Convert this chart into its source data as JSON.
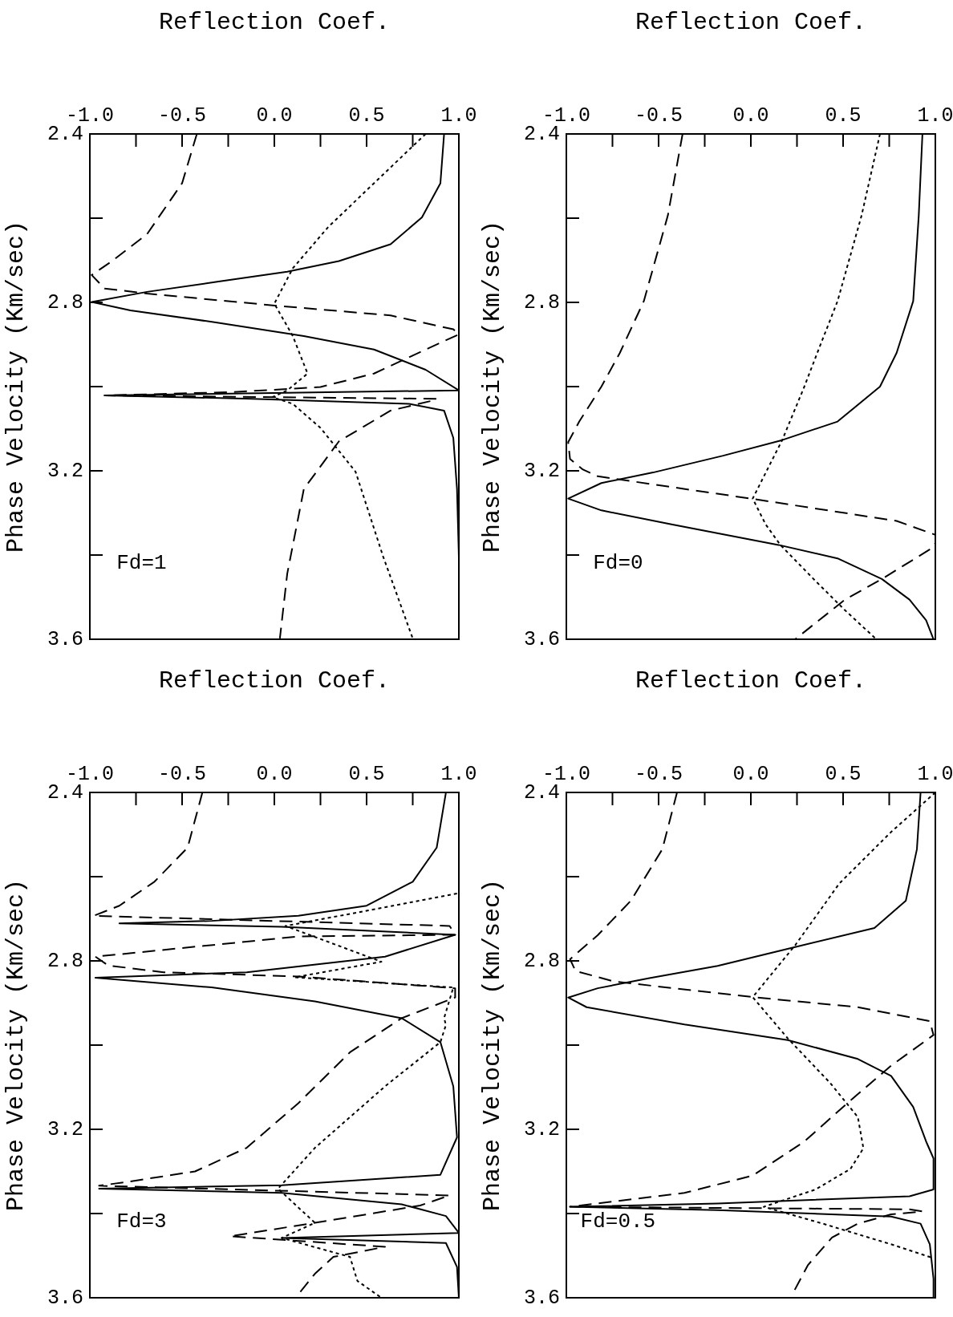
{
  "chart_data": [
    {
      "type": "line",
      "xlabel": "Reflection Coef.",
      "ylabel": "Phase Velocity (Km/sec)",
      "annotations": [
        "Fd=1"
      ],
      "xlim": [
        -1,
        1
      ],
      "ylim": [
        3.6,
        2.4
      ],
      "xticks": [
        {
          "value": -1,
          "label": "-1.0"
        },
        {
          "value": -0.75,
          "label": null
        },
        {
          "value": -0.5,
          "label": "-0.5"
        },
        {
          "value": -0.25,
          "label": null
        },
        {
          "value": 0,
          "label": "0.0"
        },
        {
          "value": 0.25,
          "label": null
        },
        {
          "value": 0.5,
          "label": "0.5"
        },
        {
          "value": 0.75,
          "label": null
        },
        {
          "value": 1,
          "label": "1.0"
        }
      ],
      "yticks": [
        {
          "value": 2.4,
          "label": "2.4"
        },
        {
          "value": 2.6,
          "label": null
        },
        {
          "value": 2.8,
          "label": "2.8"
        },
        {
          "value": 3.0,
          "label": null
        },
        {
          "value": 3.2,
          "label": "3.2"
        },
        {
          "value": 3.4,
          "label": null
        },
        {
          "value": 3.6,
          "label": "3.6"
        }
      ],
      "series": [
        {
          "color": "#000000",
          "line_style": "solid",
          "values": [
            2.4,
            2.517,
            2.598,
            2.662,
            2.702,
            2.727,
            2.751,
            2.775,
            2.799,
            2.819,
            2.848,
            2.88,
            2.912,
            2.96,
            3.009,
            3.021,
            3.029,
            3.041,
            3.057,
            3.122,
            3.243,
            3.404,
            3.598
          ],
          "x": [
            0.92,
            0.9,
            0.8,
            0.63,
            0.35,
            0.07,
            -0.31,
            -0.69,
            -0.99,
            -0.78,
            -0.31,
            0.16,
            0.54,
            0.82,
            1.0,
            -0.92,
            -0.12,
            0.73,
            0.92,
            0.97,
            0.99,
            1.0,
            1.0
          ]
        },
        {
          "color": "#000000",
          "line_style": "dashed",
          "values": [
            2.4,
            2.517,
            2.638,
            2.702,
            2.735,
            2.767,
            2.779,
            2.807,
            2.831,
            2.864,
            2.876,
            2.912,
            2.969,
            3.001,
            3.013,
            3.021,
            3.029,
            3.033,
            3.057,
            3.13,
            3.243,
            3.444,
            3.598
          ],
          "x": [
            -0.42,
            -0.5,
            -0.69,
            -0.88,
            -0.99,
            -0.92,
            -0.69,
            -0.01,
            0.63,
            0.97,
            1.0,
            0.82,
            0.54,
            0.25,
            -0.22,
            -0.92,
            0.88,
            0.86,
            0.63,
            0.35,
            0.16,
            0.07,
            0.03
          ]
        },
        {
          "color": "#000000",
          "line_style": "dotted",
          "values": [
            2.4,
            2.517,
            2.622,
            2.719,
            2.803,
            2.88,
            2.969,
            3.009,
            3.025,
            3.041,
            3.098,
            3.202,
            3.404,
            3.598
          ],
          "x": [
            0.82,
            0.54,
            0.29,
            0.1,
            0.0,
            0.1,
            0.18,
            0.07,
            -0.01,
            0.1,
            0.25,
            0.44,
            0.59,
            0.75
          ]
        }
      ]
    },
    {
      "type": "line",
      "xlabel": "Reflection Coef.",
      "ylabel": "Phase Velocity (Km/sec)",
      "annotations": [
        "Fd=0"
      ],
      "xlim": [
        -1,
        1
      ],
      "ylim": [
        3.6,
        2.4
      ],
      "xticks": [
        {
          "value": -1,
          "label": "-1.0"
        },
        {
          "value": -0.75,
          "label": null
        },
        {
          "value": -0.5,
          "label": "-0.5"
        },
        {
          "value": -0.25,
          "label": null
        },
        {
          "value": 0,
          "label": "0.0"
        },
        {
          "value": 0.25,
          "label": null
        },
        {
          "value": 0.5,
          "label": "0.5"
        },
        {
          "value": 0.75,
          "label": null
        },
        {
          "value": 1,
          "label": "1.0"
        }
      ],
      "yticks": [
        {
          "value": 2.4,
          "label": "2.4"
        },
        {
          "value": 2.6,
          "label": null
        },
        {
          "value": 2.8,
          "label": "2.8"
        },
        {
          "value": 3.0,
          "label": null
        },
        {
          "value": 3.2,
          "label": "3.2"
        },
        {
          "value": 3.4,
          "label": null
        },
        {
          "value": 3.6,
          "label": "3.6"
        }
      ],
      "series": [
        {
          "color": "#000000",
          "line_style": "solid",
          "values": [
            2.4,
            2.594,
            2.797,
            2.92,
            3.0,
            3.083,
            3.127,
            3.164,
            3.204,
            3.229,
            3.266,
            3.294,
            3.327,
            3.376,
            3.408,
            3.457,
            3.506,
            3.555,
            3.6
          ],
          "x": [
            0.93,
            0.91,
            0.88,
            0.79,
            0.7,
            0.47,
            0.17,
            -0.15,
            -0.53,
            -0.81,
            -0.99,
            -0.81,
            -0.43,
            0.15,
            0.47,
            0.71,
            0.86,
            0.95,
            0.99
          ]
        },
        {
          "color": "#000000",
          "line_style": "dashed",
          "values": [
            2.4,
            2.594,
            2.797,
            2.92,
            3.0,
            3.083,
            3.132,
            3.172,
            3.197,
            3.213,
            3.266,
            3.319,
            3.352,
            3.372,
            3.384,
            3.457,
            3.506,
            3.6
          ],
          "x": [
            -0.37,
            -0.45,
            -0.58,
            -0.71,
            -0.81,
            -0.93,
            -0.99,
            -0.98,
            -0.91,
            -0.83,
            0.0,
            0.79,
            1.0,
            1.0,
            0.98,
            0.71,
            0.51,
            0.24
          ]
        },
        {
          "color": "#000000",
          "line_style": "dotted",
          "values": [
            2.4,
            2.594,
            2.797,
            2.92,
            3.0,
            3.127,
            3.205,
            3.266,
            3.327,
            3.376,
            3.457,
            3.531,
            3.6
          ],
          "x": [
            0.7,
            0.6,
            0.47,
            0.36,
            0.29,
            0.17,
            0.08,
            0.01,
            0.08,
            0.16,
            0.34,
            0.51,
            0.68
          ]
        }
      ]
    },
    {
      "type": "line",
      "xlabel": "Reflection Coef.",
      "ylabel": "Phase Velocity (Km/sec)",
      "annotations": [
        "Fd=3"
      ],
      "xlim": [
        -1,
        1
      ],
      "ylim": [
        3.6,
        2.4
      ],
      "xticks": [
        {
          "value": -1,
          "label": "-1.0"
        },
        {
          "value": -0.75,
          "label": null
        },
        {
          "value": -0.5,
          "label": "-0.5"
        },
        {
          "value": -0.25,
          "label": null
        },
        {
          "value": 0,
          "label": "0.0"
        },
        {
          "value": 0.25,
          "label": null
        },
        {
          "value": 0.5,
          "label": "0.5"
        },
        {
          "value": 0.75,
          "label": null
        },
        {
          "value": 1,
          "label": "1.0"
        }
      ],
      "yticks": [
        {
          "value": 2.4,
          "label": "2.4"
        },
        {
          "value": 2.6,
          "label": null
        },
        {
          "value": 2.8,
          "label": "2.8"
        },
        {
          "value": 3.0,
          "label": null
        },
        {
          "value": 3.2,
          "label": "3.2"
        },
        {
          "value": 3.4,
          "label": null
        },
        {
          "value": 3.6,
          "label": "3.6"
        }
      ],
      "series": [
        {
          "color": "#000000",
          "line_style": "solid",
          "values": [
            2.4,
            2.531,
            2.612,
            2.669,
            2.693,
            2.705,
            2.711,
            2.719,
            2.738,
            2.79,
            2.827,
            2.84,
            2.863,
            2.896,
            2.936,
            2.993,
            3.098,
            3.219,
            3.308,
            3.333,
            3.341,
            3.351,
            3.378,
            3.406,
            3.446,
            3.458,
            3.47,
            3.527,
            3.6
          ],
          "x": [
            0.93,
            0.88,
            0.75,
            0.5,
            0.13,
            -0.34,
            -0.84,
            0.04,
            0.98,
            0.6,
            -0.15,
            -0.97,
            -0.34,
            0.22,
            0.69,
            0.9,
            0.97,
            0.99,
            0.9,
            0.04,
            -0.95,
            0.04,
            0.69,
            0.93,
            1.0,
            0.04,
            0.93,
            0.99,
            1.0
          ]
        },
        {
          "color": "#000000",
          "line_style": "dashed",
          "values": [
            2.4,
            2.531,
            2.612,
            2.669,
            2.693,
            2.717,
            2.738,
            2.742,
            2.79,
            2.811,
            2.827,
            2.837,
            2.865,
            2.887,
            2.936,
            3.017,
            3.138,
            3.244,
            3.3,
            3.325,
            3.334,
            3.357,
            3.381,
            3.402,
            3.422,
            3.454,
            3.479,
            3.503,
            3.543,
            3.592
          ],
          "x": [
            -0.39,
            -0.47,
            -0.65,
            -0.84,
            -0.98,
            0.95,
            0.98,
            0.13,
            -0.97,
            -0.9,
            -0.6,
            0.13,
            0.98,
            0.98,
            0.69,
            0.41,
            0.13,
            -0.15,
            -0.43,
            -0.8,
            -0.95,
            0.95,
            0.79,
            0.5,
            0.22,
            -0.24,
            0.6,
            0.32,
            0.22,
            0.13
          ]
        },
        {
          "color": "#000000",
          "line_style": "dotted",
          "values": [
            2.64,
            2.681,
            2.717,
            2.802,
            2.839,
            2.863,
            2.936,
            2.952,
            2.993,
            3.098,
            3.244,
            3.341,
            3.422,
            3.458,
            3.503,
            3.56,
            3.6
          ],
          "x": [
            0.99,
            0.5,
            0.06,
            0.58,
            0.11,
            0.97,
            0.92,
            0.93,
            0.9,
            0.6,
            0.22,
            0.02,
            0.22,
            0.04,
            0.41,
            0.45,
            0.58
          ]
        }
      ]
    },
    {
      "type": "line",
      "xlabel": "Reflection Coef.",
      "ylabel": "Phase Velocity (Km/sec)",
      "annotations": [
        "Fd=0.5"
      ],
      "xlim": [
        -1,
        1
      ],
      "ylim": [
        3.6,
        2.4
      ],
      "xticks": [
        {
          "value": -1,
          "label": "-1.0"
        },
        {
          "value": -0.75,
          "label": null
        },
        {
          "value": -0.5,
          "label": "-0.5"
        },
        {
          "value": -0.25,
          "label": null
        },
        {
          "value": 0,
          "label": "0.0"
        },
        {
          "value": 0.25,
          "label": null
        },
        {
          "value": 0.5,
          "label": "0.5"
        },
        {
          "value": 0.75,
          "label": null
        },
        {
          "value": 1,
          "label": "1.0"
        }
      ],
      "yticks": [
        {
          "value": 2.4,
          "label": "2.4"
        },
        {
          "value": 2.6,
          "label": null
        },
        {
          "value": 2.8,
          "label": "2.8"
        },
        {
          "value": 3.0,
          "label": null
        },
        {
          "value": 3.2,
          "label": "3.2"
        },
        {
          "value": 3.4,
          "label": null
        },
        {
          "value": 3.6,
          "label": "3.6"
        }
      ],
      "series": [
        {
          "color": "#000000",
          "line_style": "solid",
          "values": [
            2.4,
            2.535,
            2.657,
            2.722,
            2.767,
            2.812,
            2.841,
            2.865,
            2.887,
            2.91,
            2.951,
            2.988,
            3.033,
            3.073,
            3.147,
            3.229,
            3.269,
            3.343,
            3.359,
            3.376,
            3.384,
            3.392,
            3.407,
            3.424,
            3.473,
            3.555,
            3.6
          ],
          "x": [
            0.92,
            0.9,
            0.84,
            0.67,
            0.24,
            -0.18,
            -0.55,
            -0.83,
            -0.99,
            -0.89,
            -0.36,
            0.2,
            0.58,
            0.76,
            0.88,
            0.95,
            0.99,
            0.99,
            0.86,
            -0.18,
            -0.98,
            -0.18,
            0.76,
            0.92,
            0.97,
            0.99,
            0.99
          ]
        },
        {
          "color": "#000000",
          "line_style": "dashed",
          "values": [
            2.4,
            2.535,
            2.657,
            2.739,
            2.796,
            2.824,
            2.849,
            2.886,
            2.91,
            2.943,
            2.976,
            3.049,
            3.139,
            3.229,
            3.31,
            3.351,
            3.376,
            3.384,
            3.386,
            3.39,
            3.395,
            3.402,
            3.424,
            3.457,
            3.522,
            3.596
          ],
          "x": [
            -0.4,
            -0.48,
            -0.65,
            -0.83,
            -0.98,
            -0.95,
            -0.74,
            0.01,
            0.58,
            0.97,
            0.99,
            0.76,
            0.52,
            0.29,
            0.01,
            -0.36,
            -0.83,
            -0.98,
            -0.36,
            0.86,
            0.93,
            0.76,
            0.58,
            0.44,
            0.31,
            0.22
          ]
        },
        {
          "color": "#000000",
          "line_style": "dotted",
          "values": [
            2.4,
            2.494,
            2.616,
            2.763,
            2.886,
            2.984,
            3.09,
            3.171,
            3.245,
            3.294,
            3.343,
            3.384,
            3.424,
            3.473,
            3.506
          ],
          "x": [
            1.0,
            0.76,
            0.48,
            0.24,
            0.01,
            0.2,
            0.43,
            0.58,
            0.61,
            0.54,
            0.35,
            0.07,
            0.39,
            0.76,
            0.99
          ]
        }
      ]
    }
  ]
}
